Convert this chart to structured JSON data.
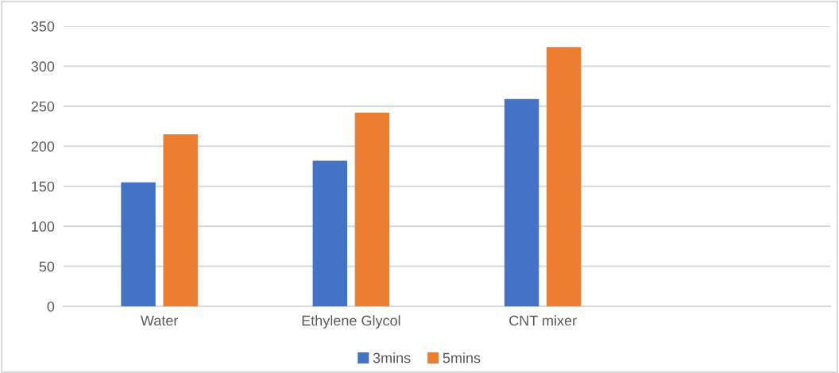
{
  "chart_data": {
    "type": "bar",
    "categories": [
      "Water",
      "Ethylene Glycol",
      "CNT mixer",
      null
    ],
    "series": [
      {
        "name": "3mins",
        "color": "#4472c4",
        "values": [
          155,
          182,
          259,
          null
        ]
      },
      {
        "name": "5mins",
        "color": "#ed7d31",
        "values": [
          215,
          242,
          324,
          null
        ]
      }
    ],
    "ylim": [
      0,
      350
    ],
    "yticks": [
      0,
      50,
      100,
      150,
      200,
      250,
      300,
      350
    ],
    "grid": "y",
    "legend": "bottom"
  }
}
